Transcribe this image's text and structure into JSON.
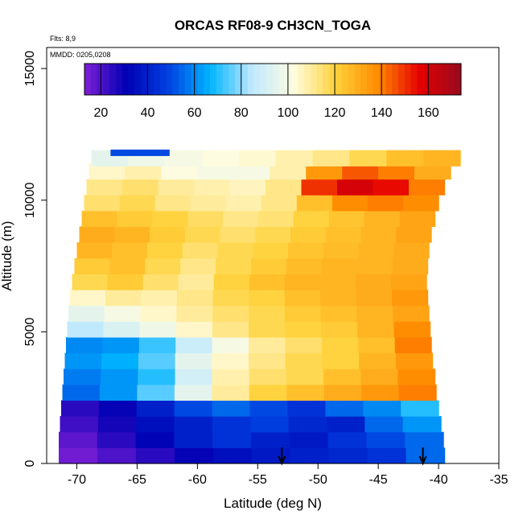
{
  "chart_data": {
    "type": "heatmap",
    "title": "ORCAS RF08-9 CH3CN_TOGA",
    "annotation_flights": "Flts: 8,9",
    "annotation_dates": "MMDD: 0205,0208",
    "xlabel": "Latitude (deg N)",
    "ylabel": "Altitude (m)",
    "xlim": [
      -72.5,
      -35
    ],
    "ylim": [
      0,
      15800
    ],
    "xticks": [
      "-70",
      "-65",
      "-60",
      "-55",
      "-50",
      "-45",
      "-40",
      "-35"
    ],
    "yticks": [
      "0",
      "5000",
      "10000",
      "15000"
    ],
    "colorbar": {
      "range": [
        13,
        174
      ],
      "ticks": [
        "20",
        "40",
        "60",
        "80",
        "100",
        "120",
        "140",
        "160"
      ],
      "colors": [
        "#7f1fd6",
        "#0000b4",
        "#0040e0",
        "#00b4ff",
        "#bfe8ff",
        "#fffde0",
        "#ffd23c",
        "#ff8c00",
        "#e60000",
        "#960a1e"
      ]
    },
    "arrows_latitude": [
      -53,
      -41.3
    ],
    "layers": [
      {
        "alt": 300,
        "lat_start": -71.5,
        "lat_end": -39.5,
        "values": [
          15,
          20,
          25,
          30,
          35,
          38,
          40,
          42,
          45,
          55
        ]
      },
      {
        "alt": 900,
        "lat_start": -71.5,
        "lat_end": -39.6,
        "values": [
          18,
          25,
          32,
          40,
          45,
          40,
          38,
          45,
          50,
          55
        ]
      },
      {
        "alt": 1500,
        "lat_start": -71.4,
        "lat_end": -39.8,
        "values": [
          22,
          28,
          35,
          40,
          45,
          48,
          42,
          40,
          55,
          62
        ]
      },
      {
        "alt": 2100,
        "lat_start": -71.3,
        "lat_end": -40.0,
        "values": [
          25,
          30,
          40,
          50,
          55,
          50,
          45,
          55,
          60,
          70
        ]
      },
      {
        "alt": 2700,
        "lat_start": -71.2,
        "lat_end": -40.2,
        "values": [
          55,
          62,
          75,
          95,
          110,
          120,
          125,
          130,
          135,
          140
        ]
      },
      {
        "alt": 3300,
        "lat_start": -71.1,
        "lat_end": -40.3,
        "values": [
          58,
          62,
          70,
          90,
          108,
          115,
          118,
          125,
          130,
          138
        ]
      },
      {
        "alt": 3900,
        "lat_start": -71.0,
        "lat_end": -40.5,
        "values": [
          62,
          66,
          75,
          95,
          105,
          112,
          118,
          120,
          128,
          135
        ]
      },
      {
        "alt": 4500,
        "lat_start": -70.9,
        "lat_end": -40.6,
        "values": [
          60,
          62,
          72,
          88,
          100,
          110,
          115,
          120,
          125,
          140
        ]
      },
      {
        "alt": 5100,
        "lat_start": -70.8,
        "lat_end": -40.7,
        "values": [
          85,
          92,
          98,
          105,
          112,
          118,
          120,
          122,
          128,
          138
        ]
      },
      {
        "alt": 5700,
        "lat_start": -70.7,
        "lat_end": -40.8,
        "values": [
          95,
          100,
          105,
          110,
          115,
          118,
          122,
          125,
          128,
          132
        ]
      },
      {
        "alt": 6300,
        "lat_start": -70.6,
        "lat_end": -40.9,
        "values": [
          105,
          110,
          108,
          112,
          118,
          120,
          125,
          128,
          130,
          135
        ]
      },
      {
        "alt": 6900,
        "lat_start": -70.4,
        "lat_end": -41.0,
        "values": [
          118,
          122,
          115,
          110,
          120,
          125,
          128,
          128,
          130,
          132
        ]
      },
      {
        "alt": 7500,
        "lat_start": -70.2,
        "lat_end": -40.9,
        "values": [
          122,
          125,
          118,
          112,
          118,
          122,
          126,
          128,
          128,
          130
        ]
      },
      {
        "alt": 8100,
        "lat_start": -70.0,
        "lat_end": -40.8,
        "values": [
          128,
          125,
          120,
          115,
          118,
          120,
          124,
          126,
          128,
          130
        ]
      },
      {
        "alt": 8700,
        "lat_start": -69.8,
        "lat_end": -40.6,
        "values": [
          130,
          128,
          122,
          118,
          115,
          118,
          122,
          125,
          128,
          132
        ]
      },
      {
        "alt": 9300,
        "lat_start": -69.6,
        "lat_end": -40.3,
        "values": [
          125,
          122,
          120,
          116,
          112,
          114,
          120,
          124,
          128,
          132
        ]
      },
      {
        "alt": 9900,
        "lat_start": -69.4,
        "lat_end": -40.0,
        "values": [
          115,
          118,
          112,
          110,
          108,
          112,
          125,
          138,
          140,
          138
        ]
      },
      {
        "alt": 10500,
        "lat_start": -69.2,
        "lat_end": -39.5,
        "values": [
          112,
          115,
          110,
          108,
          106,
          112,
          150,
          160,
          155,
          140
        ]
      },
      {
        "alt": 11100,
        "lat_start": -69.0,
        "lat_end": -39.0,
        "values": [
          105,
          108,
          102,
          100,
          100,
          108,
          135,
          145,
          140,
          130
        ]
      },
      {
        "alt": 11600,
        "lat_start": -68.8,
        "lat_end": -38.2,
        "values": [
          95,
          98,
          100,
          102,
          104,
          108,
          112,
          118,
          125,
          128
        ]
      }
    ],
    "track": {
      "alt": 11800,
      "lat_start": -67.2,
      "lat_end": -62.3,
      "value": 50
    }
  }
}
